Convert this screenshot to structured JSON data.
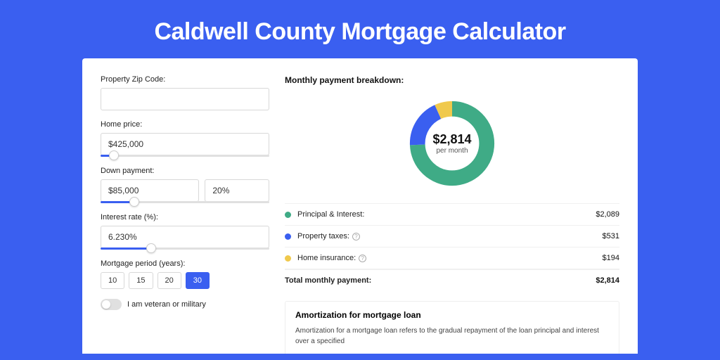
{
  "page": {
    "title": "Caldwell County Mortgage Calculator",
    "background_color": "#3a5ff0"
  },
  "form": {
    "zip": {
      "label": "Property Zip Code:",
      "value": ""
    },
    "home_price": {
      "label": "Home price:",
      "value": "$425,000",
      "slider_pct": 8
    },
    "down_payment": {
      "label": "Down payment:",
      "value": "$85,000",
      "pct_value": "20%",
      "slider_pct": 20
    },
    "interest_rate": {
      "label": "Interest rate (%):",
      "value": "6.230%",
      "slider_pct": 30
    },
    "period": {
      "label": "Mortgage period (years):",
      "options": [
        "10",
        "15",
        "20",
        "30"
      ],
      "selected_index": 3
    },
    "veteran": {
      "label": "I am veteran or military",
      "checked": false
    }
  },
  "breakdown": {
    "title": "Monthly payment breakdown:",
    "donut": {
      "value": "$2,814",
      "sub": "per month",
      "segments": [
        {
          "label": "Principal & Interest:",
          "value": "$2,089",
          "amount": 2089,
          "color": "#3fab86",
          "has_info": false
        },
        {
          "label": "Property taxes:",
          "value": "$531",
          "amount": 531,
          "color": "#3a5ff0",
          "has_info": true
        },
        {
          "label": "Home insurance:",
          "value": "$194",
          "amount": 194,
          "color": "#f0c94c",
          "has_info": true
        }
      ]
    },
    "total": {
      "label": "Total monthly payment:",
      "value": "$2,814"
    }
  },
  "amort": {
    "title": "Amortization for mortgage loan",
    "text": "Amortization for a mortgage loan refers to the gradual repayment of the loan principal and interest over a specified"
  }
}
